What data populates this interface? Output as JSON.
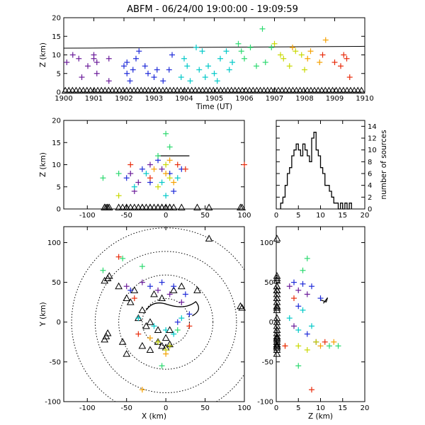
{
  "title": "ABFM - 06/24/00 19:00:00 - 19:09:59",
  "chart_data": [
    {
      "id": "time_height",
      "type": "scatter",
      "xlabel": "Time (UT)",
      "ylabel": "Z (km)",
      "xlim": [
        1900,
        1910
      ],
      "ylim": [
        0,
        20
      ],
      "xticks": [
        "1900",
        "1901",
        "1902",
        "1903",
        "1904",
        "1905",
        "1906",
        "1907",
        "1908",
        "1909",
        "1910"
      ],
      "yticks": [
        "0",
        "5",
        "10",
        "15",
        "20"
      ],
      "reference_line": {
        "x": [
          1900,
          1910
        ],
        "y": [
          11.8,
          12.3
        ]
      },
      "series": [
        {
          "marker": "plus",
          "color": "#6a1b9a",
          "points": [
            [
              1900.1,
              8
            ],
            [
              1900.3,
              10
            ],
            [
              1900.5,
              9
            ],
            [
              1900.6,
              4
            ],
            [
              1900.8,
              7
            ],
            [
              1901.0,
              10
            ],
            [
              1901.0,
              9
            ],
            [
              1901.1,
              5
            ],
            [
              1901.1,
              8
            ],
            [
              1901.5,
              3
            ],
            [
              1901.5,
              9
            ]
          ]
        },
        {
          "marker": "plus",
          "color": "#1e2ad8",
          "points": [
            [
              1902.0,
              7
            ],
            [
              1902.1,
              8
            ],
            [
              1902.1,
              5
            ],
            [
              1902.2,
              3
            ],
            [
              1902.3,
              6
            ],
            [
              1902.4,
              9
            ],
            [
              1902.5,
              11
            ],
            [
              1902.7,
              7
            ],
            [
              1902.8,
              5
            ],
            [
              1903.0,
              4
            ],
            [
              1903.1,
              6
            ],
            [
              1903.3,
              3
            ],
            [
              1903.5,
              6
            ],
            [
              1903.6,
              10
            ]
          ]
        },
        {
          "marker": "plus",
          "color": "#00c8c8",
          "points": [
            [
              1903.9,
              4
            ],
            [
              1904.0,
              9
            ],
            [
              1904.1,
              7
            ],
            [
              1904.2,
              3
            ],
            [
              1904.4,
              12
            ],
            [
              1904.5,
              6
            ],
            [
              1904.6,
              11
            ],
            [
              1904.7,
              4
            ],
            [
              1904.8,
              7
            ],
            [
              1905.0,
              5
            ],
            [
              1905.1,
              3
            ],
            [
              1905.2,
              9
            ],
            [
              1905.4,
              11
            ],
            [
              1905.5,
              6
            ],
            [
              1905.6,
              8
            ]
          ]
        },
        {
          "marker": "plus",
          "color": "#2bd96f",
          "points": [
            [
              1905.8,
              13
            ],
            [
              1905.9,
              11
            ],
            [
              1906.0,
              9
            ],
            [
              1906.2,
              12
            ],
            [
              1906.4,
              7
            ],
            [
              1906.6,
              17
            ],
            [
              1906.7,
              8
            ],
            [
              1906.9,
              12
            ]
          ]
        },
        {
          "marker": "plus",
          "color": "#c8d800",
          "points": [
            [
              1907.0,
              13
            ],
            [
              1907.2,
              10
            ],
            [
              1907.3,
              9
            ],
            [
              1907.5,
              7
            ],
            [
              1907.7,
              11
            ],
            [
              1907.9,
              10
            ],
            [
              1908.0,
              6
            ]
          ]
        },
        {
          "marker": "plus",
          "color": "#f5a000",
          "points": [
            [
              1907.6,
              12
            ],
            [
              1908.1,
              9
            ],
            [
              1908.2,
              11
            ],
            [
              1908.5,
              8
            ],
            [
              1908.7,
              14
            ]
          ]
        },
        {
          "marker": "plus",
          "color": "#e82a0a",
          "points": [
            [
              1908.6,
              10
            ],
            [
              1909.0,
              8
            ],
            [
              1909.2,
              7
            ],
            [
              1909.3,
              10
            ],
            [
              1909.4,
              9
            ],
            [
              1909.5,
              4
            ]
          ]
        }
      ],
      "ground_stations_z": 0
    },
    {
      "id": "x_height",
      "type": "scatter",
      "ylabel": "Z (km)",
      "xlim": [
        -130,
        100
      ],
      "ylim": [
        0,
        20
      ],
      "xticks": [
        "-100",
        "-50",
        "0",
        "50",
        "100"
      ],
      "yticks": [
        "0",
        "5",
        "10",
        "15",
        "20"
      ],
      "series": [
        {
          "marker": "plus",
          "color": "#6a1b9a",
          "points": [
            [
              -45,
              8
            ],
            [
              -35,
              6
            ],
            [
              -20,
              10
            ],
            [
              -5,
              9
            ],
            [
              -40,
              4
            ]
          ]
        },
        {
          "marker": "plus",
          "color": "#1e2ad8",
          "points": [
            [
              -50,
              7
            ],
            [
              -30,
              9
            ],
            [
              -10,
              11
            ],
            [
              5,
              8
            ],
            [
              -20,
              6
            ],
            [
              10,
              4
            ],
            [
              20,
              9
            ]
          ]
        },
        {
          "marker": "plus",
          "color": "#00c8c8",
          "points": [
            [
              -40,
              5
            ],
            [
              -25,
              8
            ],
            [
              -5,
              6
            ],
            [
              15,
              7
            ],
            [
              0,
              3
            ]
          ]
        },
        {
          "marker": "plus",
          "color": "#2bd96f",
          "points": [
            [
              -80,
              7
            ],
            [
              -60,
              8
            ],
            [
              0,
              17
            ],
            [
              5,
              14
            ],
            [
              -10,
              12
            ]
          ]
        },
        {
          "marker": "plus",
          "color": "#c8d800",
          "points": [
            [
              -60,
              3
            ],
            [
              -10,
              5
            ],
            [
              0,
              10
            ],
            [
              5,
              7
            ]
          ]
        },
        {
          "marker": "plus",
          "color": "#f5a000",
          "points": [
            [
              -15,
              9
            ],
            [
              5,
              11
            ],
            [
              10,
              6
            ],
            [
              0,
              8
            ]
          ]
        },
        {
          "marker": "plus",
          "color": "#e82a0a",
          "points": [
            [
              -45,
              10
            ],
            [
              -20,
              7
            ],
            [
              15,
              10
            ],
            [
              25,
              9
            ],
            [
              100,
              10
            ]
          ]
        }
      ]
    },
    {
      "id": "z_histogram",
      "type": "bar",
      "xlabel": "",
      "ylabel": "number of sources",
      "xlim": [
        0,
        20
      ],
      "ylim": [
        0,
        15
      ],
      "xticks": [
        "0",
        "5",
        "10",
        "15",
        "20"
      ],
      "yticks": [
        "0",
        "2",
        "4",
        "6",
        "8",
        "10",
        "12",
        "14"
      ],
      "bin_edges": [
        1,
        1.5,
        2,
        2.5,
        3,
        3.5,
        4,
        4.5,
        5,
        5.5,
        6,
        6.5,
        7,
        7.5,
        8,
        8.5,
        9,
        9.5,
        10,
        10.5,
        11,
        11.5,
        12,
        12.5,
        13,
        13.5,
        14,
        14.5,
        15,
        15.5,
        16,
        16.5,
        17
      ],
      "values": [
        1,
        2,
        4,
        6,
        7,
        9,
        10,
        11,
        10,
        9,
        11,
        10,
        9,
        8,
        12,
        13,
        10,
        9,
        7,
        6,
        4,
        4,
        3,
        2,
        1,
        1,
        0,
        1,
        0,
        1,
        0,
        1
      ]
    },
    {
      "id": "plan_view",
      "type": "scatter",
      "xlabel": "X (km)",
      "ylabel": "Y (km)",
      "xlim": [
        -130,
        100
      ],
      "ylim": [
        -100,
        120
      ],
      "xticks": [
        "-100",
        "-50",
        "0",
        "50",
        "100"
      ],
      "yticks": [
        "-100",
        "-50",
        "0",
        "50",
        "100"
      ],
      "range_rings_km": [
        30,
        60,
        90,
        120
      ],
      "stations": [
        [
          -74,
          55
        ],
        [
          -78,
          52
        ],
        [
          -72,
          58
        ],
        [
          -76,
          -18
        ],
        [
          -78,
          -22
        ],
        [
          -74,
          -14
        ],
        [
          -55,
          -25
        ],
        [
          -50,
          -40
        ],
        [
          -30,
          -30
        ],
        [
          -20,
          -35
        ],
        [
          -10,
          -25
        ],
        [
          -5,
          -30
        ],
        [
          0,
          -32
        ],
        [
          5,
          -28
        ],
        [
          -25,
          -5
        ],
        [
          -35,
          5
        ],
        [
          -45,
          25
        ],
        [
          -50,
          30
        ],
        [
          -40,
          40
        ],
        [
          -15,
          35
        ],
        [
          -5,
          30
        ],
        [
          10,
          40
        ],
        [
          20,
          45
        ],
        [
          40,
          40
        ],
        [
          55,
          105
        ],
        [
          97,
          18
        ],
        [
          95,
          20
        ],
        [
          -60,
          45
        ],
        [
          -30,
          15
        ],
        [
          -20,
          0
        ],
        [
          -10,
          -10
        ],
        [
          0,
          -20
        ],
        [
          5,
          -10
        ]
      ],
      "series": [
        {
          "marker": "plus",
          "color": "#6a1b9a",
          "points": [
            [
              -50,
              45
            ],
            [
              -30,
              50
            ],
            [
              -10,
              40
            ],
            [
              5,
              35
            ],
            [
              20,
              25
            ]
          ]
        },
        {
          "marker": "plus",
          "color": "#1e2ad8",
          "points": [
            [
              -45,
              40
            ],
            [
              -20,
              45
            ],
            [
              -5,
              50
            ],
            [
              10,
              45
            ],
            [
              25,
              35
            ],
            [
              30,
              10
            ],
            [
              15,
              0
            ]
          ]
        },
        {
          "marker": "plus",
          "color": "#00c8c8",
          "points": [
            [
              -35,
              5
            ],
            [
              -15,
              -5
            ],
            [
              0,
              -10
            ],
            [
              10,
              -15
            ],
            [
              20,
              5
            ]
          ]
        },
        {
          "marker": "plus",
          "color": "#2bd96f",
          "points": [
            [
              -80,
              65
            ],
            [
              -55,
              80
            ],
            [
              -5,
              -55
            ],
            [
              15,
              -10
            ],
            [
              -30,
              70
            ]
          ]
        },
        {
          "marker": "plus",
          "color": "#c8d800",
          "points": [
            [
              -10,
              -25
            ],
            [
              0,
              -35
            ],
            [
              5,
              -30
            ]
          ]
        },
        {
          "marker": "plus",
          "color": "#f5a000",
          "points": [
            [
              -30,
              -85
            ],
            [
              -20,
              -20
            ],
            [
              0,
              -40
            ]
          ]
        },
        {
          "marker": "plus",
          "color": "#e82a0a",
          "points": [
            [
              -60,
              82
            ],
            [
              -35,
              -15
            ],
            [
              30,
              -5
            ],
            [
              -40,
              30
            ]
          ]
        }
      ]
    },
    {
      "id": "z_y_view",
      "type": "scatter",
      "xlabel": "Z (km)",
      "xlim": [
        0,
        20
      ],
      "ylim": [
        -100,
        120
      ],
      "xticks": [
        "0",
        "5",
        "10",
        "15",
        "20"
      ],
      "yticks": [
        "-100",
        "-50",
        "0",
        "50",
        "100"
      ],
      "series": [
        {
          "marker": "plus",
          "color": "#6a1b9a",
          "points": [
            [
              3,
              45
            ],
            [
              5,
              40
            ],
            [
              7,
              35
            ],
            [
              9,
              -25
            ],
            [
              4,
              -5
            ]
          ]
        },
        {
          "marker": "plus",
          "color": "#1e2ad8",
          "points": [
            [
              4,
              50
            ],
            [
              6,
              48
            ],
            [
              8,
              45
            ],
            [
              10,
              30
            ],
            [
              5,
              20
            ],
            [
              7,
              -15
            ]
          ]
        },
        {
          "marker": "plus",
          "color": "#00c8c8",
          "points": [
            [
              3,
              5
            ],
            [
              5,
              -10
            ],
            [
              8,
              -5
            ],
            [
              6,
              15
            ]
          ]
        },
        {
          "marker": "plus",
          "color": "#2bd96f",
          "points": [
            [
              7,
              80
            ],
            [
              6,
              65
            ],
            [
              12,
              -30
            ],
            [
              5,
              -55
            ],
            [
              14,
              -30
            ]
          ]
        },
        {
          "marker": "plus",
          "color": "#c8d800",
          "points": [
            [
              5,
              -30
            ],
            [
              7,
              -35
            ],
            [
              9,
              -25
            ]
          ]
        },
        {
          "marker": "plus",
          "color": "#f5a000",
          "points": [
            [
              2,
              -30
            ],
            [
              10,
              -30
            ],
            [
              13,
              -25
            ]
          ]
        },
        {
          "marker": "plus",
          "color": "#e82a0a",
          "points": [
            [
              8,
              -85
            ],
            [
              2,
              -30
            ],
            [
              11,
              -25
            ],
            [
              4,
              30
            ]
          ]
        }
      ]
    }
  ]
}
